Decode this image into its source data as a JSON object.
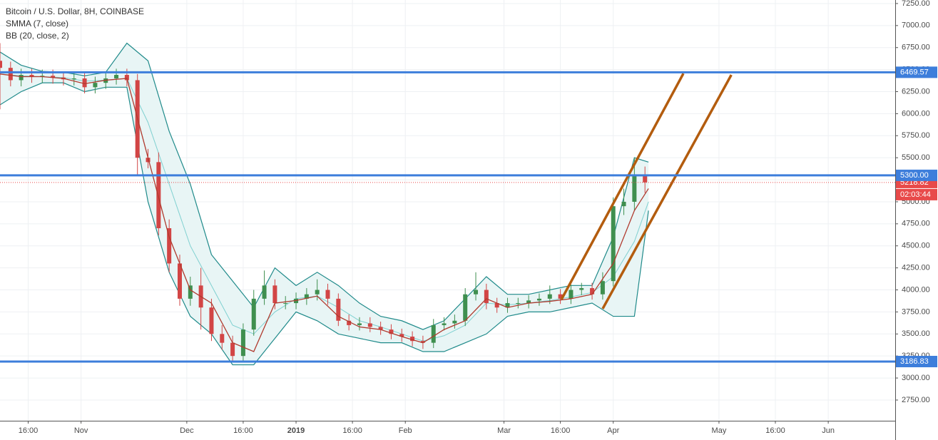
{
  "chart_data": {
    "type": "candlestick",
    "title": "Bitcoin / U.S. Dollar, 8H, COINBASE",
    "x": [
      8,
      11,
      14,
      17,
      20,
      23,
      26,
      29,
      32,
      35,
      38,
      41,
      44,
      47,
      50,
      53,
      56,
      59,
      62,
      65,
      68,
      71,
      74,
      77,
      80,
      83,
      86,
      89,
      92,
      95,
      98,
      101,
      104,
      107,
      110,
      113,
      116,
      119,
      122,
      125,
      128,
      131,
      134,
      137,
      140,
      143,
      146,
      149,
      152,
      155,
      158,
      161,
      164,
      167,
      170,
      173,
      176,
      179,
      182,
      185,
      188,
      191
    ],
    "open": [
      6600,
      6520,
      6380,
      6440,
      6420,
      6430,
      6410,
      6390,
      6400,
      6300,
      6350,
      6400,
      6440,
      6380,
      5500,
      5450,
      4700,
      4300,
      3900,
      4050,
      3800,
      3500,
      3400,
      3250,
      3550,
      3900,
      4050,
      3850,
      3850,
      3900,
      3950,
      4000,
      3900,
      3650,
      3600,
      3620,
      3580,
      3550,
      3500,
      3470,
      3420,
      3400,
      3600,
      3620,
      3650,
      3950,
      4000,
      3850,
      3800,
      3850,
      3850,
      3880,
      3900,
      3950,
      3900,
      4000,
      4020,
      3950,
      4100,
      4950,
      5000,
      5300
    ],
    "high": [
      6800,
      6590,
      6510,
      6510,
      6500,
      6500,
      6480,
      6470,
      6470,
      6420,
      6470,
      6510,
      6510,
      6450,
      5600,
      5560,
      4800,
      4400,
      4150,
      4250,
      3900,
      3600,
      3480,
      3620,
      4000,
      4220,
      4120,
      3930,
      3970,
      4020,
      4120,
      4070,
      3960,
      3720,
      3690,
      3690,
      3640,
      3610,
      3560,
      3530,
      3480,
      3670,
      3690,
      3720,
      4020,
      4200,
      4070,
      3910,
      3910,
      3910,
      3940,
      3960,
      4050,
      4010,
      4060,
      4080,
      4080,
      4200,
      5050,
      5150,
      5500,
      5400
    ],
    "low": [
      6050,
      6310,
      6310,
      6350,
      6350,
      6340,
      6320,
      6320,
      6230,
      6230,
      6280,
      6330,
      6310,
      5300,
      5380,
      4620,
      4200,
      3820,
      3820,
      3550,
      3420,
      3320,
      3180,
      3180,
      3480,
      3830,
      3780,
      3780,
      3780,
      3830,
      3880,
      3830,
      3590,
      3540,
      3540,
      3520,
      3490,
      3440,
      3410,
      3360,
      3330,
      3340,
      3540,
      3560,
      3590,
      3880,
      3780,
      3740,
      3740,
      3790,
      3790,
      3820,
      3840,
      3840,
      3840,
      3940,
      3890,
      3890,
      4040,
      4850,
      4900,
      5100
    ],
    "close": [
      6520,
      6380,
      6440,
      6420,
      6430,
      6410,
      6390,
      6400,
      6300,
      6350,
      6400,
      6440,
      6380,
      5500,
      5450,
      4700,
      4300,
      3900,
      4050,
      3800,
      3500,
      3400,
      3250,
      3550,
      3900,
      4050,
      3850,
      3850,
      3900,
      3950,
      4000,
      3900,
      3650,
      3600,
      3620,
      3580,
      3550,
      3500,
      3470,
      3420,
      3400,
      3600,
      3620,
      3650,
      3950,
      4000,
      3850,
      3800,
      3850,
      3850,
      3880,
      3900,
      3950,
      3900,
      4000,
      4020,
      3950,
      4100,
      4950,
      5000,
      5300,
      5220
    ],
    "up_color": "#3f8f4f",
    "down_color": "#d24545",
    "indicators": [
      {
        "name": "SMMA (7, close)",
        "color": "#b03a2e",
        "x": [
          8,
          14,
          20,
          26,
          32,
          38,
          44,
          50,
          56,
          62,
          68,
          74,
          80,
          86,
          92,
          98,
          104,
          110,
          116,
          122,
          128,
          134,
          140,
          146,
          152,
          158,
          164,
          170,
          176,
          182,
          188,
          192
        ],
        "values": [
          6450,
          6420,
          6420,
          6400,
          6340,
          6380,
          6400,
          5500,
          4600,
          4000,
          3850,
          3400,
          3300,
          3850,
          3880,
          3930,
          3700,
          3580,
          3550,
          3470,
          3400,
          3550,
          3650,
          3900,
          3800,
          3850,
          3870,
          3900,
          3950,
          4300,
          4900,
          5150
        ]
      },
      {
        "name": "BB (20, close, 2)",
        "color": "#1f8a8a",
        "basis_color": "#7fd0d0",
        "fill": "#e8f5f5",
        "x": [
          8,
          14,
          20,
          26,
          32,
          38,
          44,
          50,
          56,
          62,
          68,
          74,
          80,
          86,
          92,
          98,
          104,
          110,
          116,
          122,
          128,
          134,
          140,
          146,
          152,
          158,
          164,
          170,
          176,
          182,
          188,
          192
        ],
        "upper": [
          6700,
          6550,
          6480,
          6470,
          6430,
          6470,
          6800,
          6600,
          5800,
          5200,
          4400,
          4100,
          3800,
          4250,
          4050,
          4200,
          4050,
          3850,
          3700,
          3650,
          3550,
          3650,
          3900,
          4150,
          3950,
          3950,
          4000,
          4050,
          4050,
          4600,
          5500,
          5450
        ],
        "basis": [
          6450,
          6430,
          6420,
          6410,
          6370,
          6380,
          6400,
          5900,
          5200,
          4500,
          4050,
          3600,
          3500,
          3750,
          3900,
          3930,
          3800,
          3650,
          3580,
          3500,
          3420,
          3480,
          3600,
          3850,
          3830,
          3850,
          3880,
          3920,
          3970,
          4150,
          4550,
          5000
        ],
        "lower": [
          6100,
          6250,
          6350,
          6350,
          6250,
          6300,
          6300,
          5000,
          4200,
          3700,
          3500,
          3150,
          3150,
          3450,
          3750,
          3650,
          3500,
          3450,
          3400,
          3400,
          3300,
          3300,
          3400,
          3500,
          3700,
          3750,
          3750,
          3800,
          3850,
          3700,
          3700,
          4900
        ]
      }
    ],
    "levels": [
      6469.57,
      {
        "value": 5300,
        "label": "5300.00"
      },
      3186.83
    ],
    "levels_color": "#3d7edb",
    "price_line": {
      "value": 5218.82,
      "countdown": "02:03:44",
      "color": "#e84a4a"
    },
    "trend_lines": [
      {
        "x": [
          167.3,
          201.9
        ],
        "y": [
          3891,
          6456
        ]
      },
      {
        "x": [
          179.0,
          215.5
        ],
        "y": [
          3786,
          6440
        ]
      }
    ],
    "trend_color": "#b35c0e",
    "xlim": [
      8,
      262
    ],
    "ylim": [
      2515,
      7290
    ],
    "grid": true,
    "xticks": [
      {
        "value": 16,
        "label": "16:00"
      },
      {
        "value": 31,
        "label": "Nov"
      },
      {
        "value": 61,
        "label": "Dec"
      },
      {
        "value": 77,
        "label": "16:00"
      },
      {
        "value": 92,
        "label": "2019"
      },
      {
        "value": 108,
        "label": "16:00"
      },
      {
        "value": 123,
        "label": "Feb"
      },
      {
        "value": 151,
        "label": "Mar"
      },
      {
        "value": 167,
        "label": "16:00"
      },
      {
        "value": 182,
        "label": "Apr"
      },
      {
        "value": 212,
        "label": "May"
      },
      {
        "value": 228,
        "label": "16:00"
      },
      {
        "value": 243,
        "label": "Jun"
      }
    ],
    "yticks": [
      {
        "value": 2750,
        "label": "2750.00"
      },
      {
        "value": 3000,
        "label": "3000.00"
      },
      {
        "value": 3250,
        "label": "3250.00"
      },
      {
        "value": 3500,
        "label": "3500.00"
      },
      {
        "value": 3750,
        "label": "3750.00"
      },
      {
        "value": 4000,
        "label": "4000.00"
      },
      {
        "value": 4250,
        "label": "4250.00"
      },
      {
        "value": 4500,
        "label": "4500.00"
      },
      {
        "value": 4750,
        "label": "4750.00"
      },
      {
        "value": 5000,
        "label": "5000.00"
      },
      {
        "value": 5250,
        "label": "5250.00"
      },
      {
        "value": 5500,
        "label": "5500.00"
      },
      {
        "value": 5750,
        "label": "5750.00"
      },
      {
        "value": 6000,
        "label": "6000.00"
      },
      {
        "value": 6250,
        "label": "6250.00"
      },
      {
        "value": 6500,
        "label": "6500.00"
      },
      {
        "value": 6750,
        "label": "6750.00"
      },
      {
        "value": 7000,
        "label": "7000.00"
      },
      {
        "value": 7250,
        "label": "7250.00"
      }
    ]
  }
}
